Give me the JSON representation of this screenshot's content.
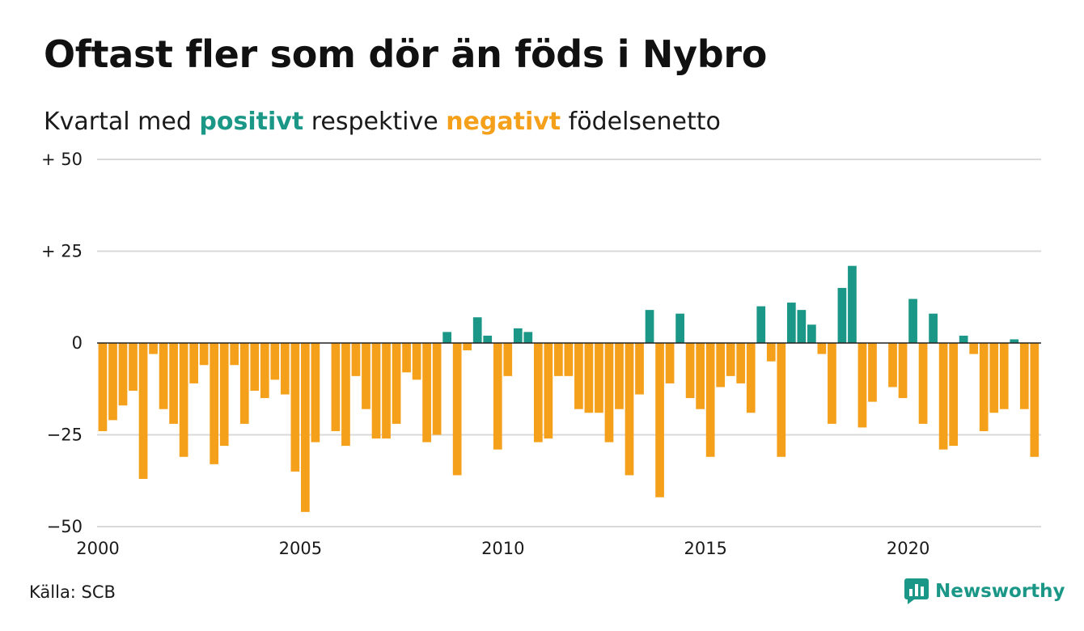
{
  "title": "Oftast fler som dör än föds i Nybro",
  "subtitle": {
    "before": "Kvartal med ",
    "positive": "positivt",
    "middle": " respektive ",
    "negative": "negativt",
    "after": " födelsenetto"
  },
  "source": "Källa: SCB",
  "brand": "Newsworthy",
  "colors": {
    "positive": "#1a9787",
    "negative": "#f5a01b",
    "grid": "#d9d9d9",
    "zero": "#222222"
  },
  "chart_data": {
    "type": "bar",
    "x_start": "2000 Q1",
    "x_ticks": [
      {
        "label": "2000",
        "year": 2000
      },
      {
        "label": "2005",
        "year": 2005
      },
      {
        "label": "2010",
        "year": 2010
      },
      {
        "label": "2015",
        "year": 2015
      },
      {
        "label": "2020",
        "year": 2020
      }
    ],
    "y_ticks": [
      {
        "label": "+ 50",
        "value": 50
      },
      {
        "label": "+ 25",
        "value": 25
      },
      {
        "label": "0",
        "value": 0
      },
      {
        "label": "−25",
        "value": -25
      },
      {
        "label": "−50",
        "value": -50
      }
    ],
    "ylim": [
      -50,
      50
    ],
    "grid": true,
    "values": [
      -24,
      -21,
      -17,
      -13,
      -37,
      -3,
      -18,
      -22,
      -31,
      -11,
      -6,
      -33,
      -28,
      -6,
      -22,
      -13,
      -15,
      -10,
      -14,
      -35,
      -46,
      -27,
      0,
      -24,
      -28,
      -9,
      -18,
      -26,
      -26,
      -22,
      -8,
      -10,
      -27,
      -25,
      3,
      -36,
      -2,
      7,
      2,
      -29,
      -9,
      4,
      3,
      -27,
      -26,
      -9,
      -9,
      -18,
      -19,
      -19,
      -27,
      -18,
      -36,
      -14,
      9,
      -42,
      -11,
      8,
      -15,
      -18,
      -31,
      -12,
      -9,
      -11,
      -19,
      10,
      -5,
      -31,
      11,
      9,
      5,
      -3,
      -22,
      15,
      21,
      -23,
      -16,
      0,
      -12,
      -15,
      12,
      -22,
      8,
      -29,
      -28,
      2,
      -3,
      -24,
      -19,
      -18,
      1,
      -18,
      -31
    ]
  }
}
